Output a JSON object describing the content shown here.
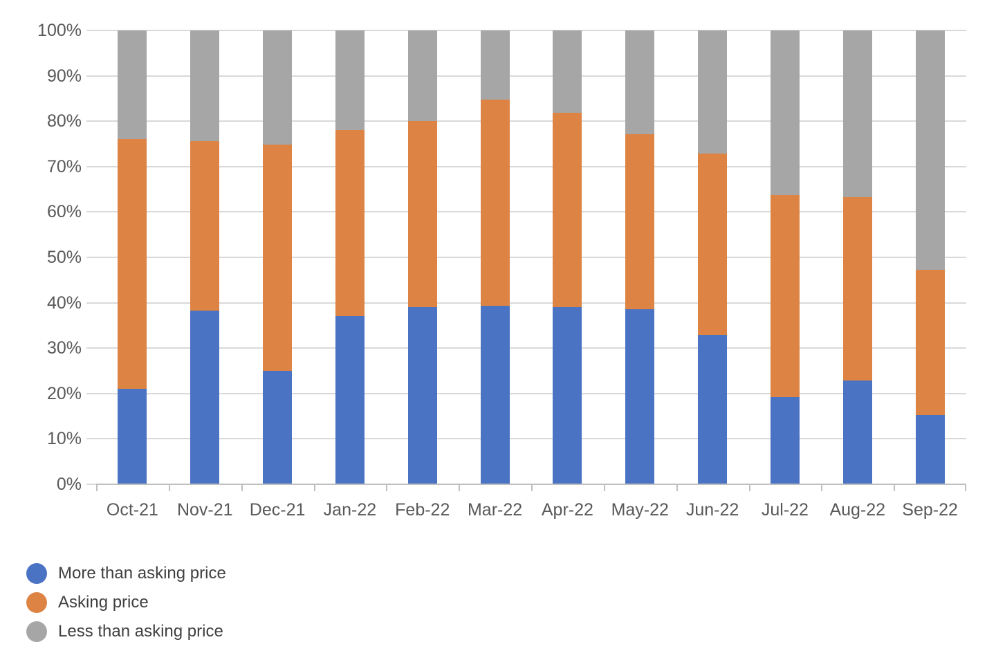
{
  "chart_data": {
    "type": "bar",
    "variant": "stacked-100-percent",
    "categories": [
      "Oct-21",
      "Nov-21",
      "Dec-21",
      "Jan-22",
      "Feb-22",
      "Mar-22",
      "Apr-22",
      "May-22",
      "Jun-22",
      "Jul-22",
      "Aug-22",
      "Sep-22"
    ],
    "series": [
      {
        "name": "More than asking price",
        "color": "#4A73C4",
        "values": [
          21.0,
          38.3,
          25.0,
          37.0,
          39.0,
          39.4,
          39.0,
          38.6,
          33.0,
          19.2,
          22.8,
          15.2
        ]
      },
      {
        "name": "Asking price",
        "color": "#DD8444",
        "values": [
          55.0,
          37.3,
          49.8,
          41.0,
          41.1,
          45.3,
          42.9,
          38.5,
          39.9,
          44.5,
          40.4,
          32.1
        ]
      },
      {
        "name": "Less than asking price",
        "color": "#A6A6A6",
        "values": [
          24.0,
          24.4,
          25.2,
          22.0,
          19.9,
          15.3,
          18.1,
          22.9,
          27.1,
          36.3,
          36.8,
          52.7
        ]
      }
    ],
    "ylim": [
      0,
      100
    ],
    "yticks": [
      "0%",
      "10%",
      "20%",
      "30%",
      "40%",
      "50%",
      "60%",
      "70%",
      "80%",
      "90%",
      "100%"
    ],
    "grid": true,
    "legend_position": "bottom-left"
  },
  "style": {
    "gridline_color": "#D9D9D9",
    "axis_line_color": "#BFBFBF",
    "tick_color": "#D9D9D9",
    "axis_text_color": "#595959",
    "legend_text_color": "#404040"
  }
}
